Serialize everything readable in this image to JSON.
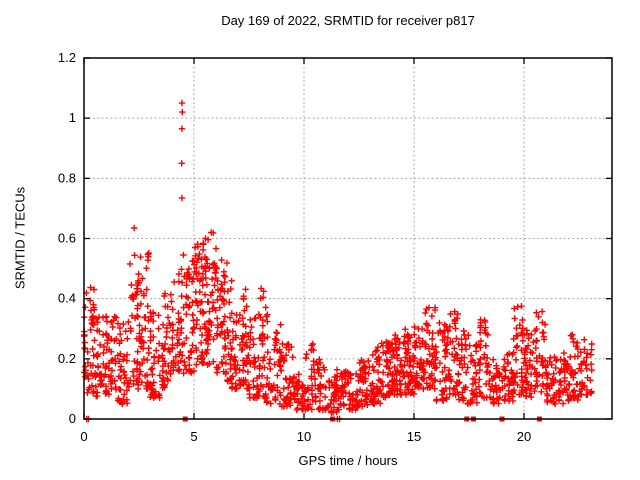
{
  "title": "Day 169 of 2022, SRMTID for receiver p817",
  "chart_data": {
    "type": "scatter",
    "title": "Day 169 of 2022, SRMTID for receiver p817",
    "xlabel": "GPS time / hours",
    "ylabel": "SRMTID / TECUs",
    "xlim": [
      0,
      24
    ],
    "ylim": [
      0,
      1.2
    ],
    "xticks": [
      0,
      5,
      10,
      15,
      20
    ],
    "xtick_labels": [
      "0",
      "5",
      "10",
      "15",
      "20"
    ],
    "yticks": [
      0,
      0.2,
      0.4,
      0.6,
      0.8,
      1,
      1.2
    ],
    "ytick_labels": [
      "0",
      "0.2",
      "0.4",
      "0.6",
      "0.8",
      "1",
      "1.2"
    ],
    "grid": true,
    "grid_color": "#a6a6a6",
    "marker": "plus",
    "marker_color": "#ff0000",
    "border_color": "#000000",
    "legend": "none",
    "series_name": "SRMTID",
    "bands_legend": "[x_start_h, x_end_h, y_min_TECU, y_max_TECU, n_points] density envelope of the scatter cloud",
    "bands": [
      [
        0.0,
        0.5,
        0.08,
        0.46,
        45
      ],
      [
        0.5,
        1.0,
        0.07,
        0.36,
        40
      ],
      [
        1.0,
        1.5,
        0.08,
        0.34,
        40
      ],
      [
        1.5,
        2.0,
        0.05,
        0.33,
        40
      ],
      [
        2.0,
        2.5,
        0.1,
        0.6,
        45
      ],
      [
        2.5,
        3.0,
        0.1,
        0.56,
        45
      ],
      [
        3.0,
        3.5,
        0.07,
        0.36,
        40
      ],
      [
        3.5,
        4.0,
        0.1,
        0.42,
        40
      ],
      [
        4.0,
        4.5,
        0.13,
        0.5,
        40
      ],
      [
        4.5,
        5.0,
        0.15,
        0.53,
        45
      ],
      [
        5.0,
        5.5,
        0.18,
        0.6,
        55
      ],
      [
        5.5,
        6.0,
        0.18,
        0.62,
        55
      ],
      [
        6.0,
        6.5,
        0.15,
        0.55,
        50
      ],
      [
        6.5,
        7.0,
        0.1,
        0.46,
        45
      ],
      [
        7.0,
        7.5,
        0.1,
        0.45,
        45
      ],
      [
        7.5,
        8.0,
        0.07,
        0.36,
        40
      ],
      [
        8.0,
        8.5,
        0.05,
        0.45,
        40
      ],
      [
        8.5,
        9.0,
        0.05,
        0.32,
        35
      ],
      [
        9.0,
        9.5,
        0.04,
        0.28,
        35
      ],
      [
        9.5,
        10.0,
        0.03,
        0.15,
        35
      ],
      [
        10.0,
        10.5,
        0.03,
        0.25,
        35
      ],
      [
        10.5,
        11.0,
        0.03,
        0.2,
        35
      ],
      [
        11.0,
        11.5,
        0.02,
        0.15,
        35
      ],
      [
        11.5,
        12.0,
        0.03,
        0.18,
        35
      ],
      [
        12.0,
        12.5,
        0.03,
        0.16,
        35
      ],
      [
        12.5,
        13.0,
        0.04,
        0.2,
        40
      ],
      [
        13.0,
        13.5,
        0.05,
        0.24,
        40
      ],
      [
        13.5,
        14.0,
        0.07,
        0.26,
        45
      ],
      [
        14.0,
        14.5,
        0.08,
        0.28,
        50
      ],
      [
        14.5,
        15.0,
        0.08,
        0.3,
        50
      ],
      [
        15.0,
        15.5,
        0.09,
        0.31,
        45
      ],
      [
        15.5,
        16.0,
        0.1,
        0.38,
        45
      ],
      [
        16.0,
        16.5,
        0.06,
        0.32,
        40
      ],
      [
        16.5,
        17.0,
        0.08,
        0.36,
        40
      ],
      [
        17.0,
        17.5,
        0.05,
        0.3,
        35
      ],
      [
        17.5,
        18.0,
        0.05,
        0.26,
        35
      ],
      [
        18.0,
        18.5,
        0.07,
        0.33,
        35
      ],
      [
        18.5,
        19.0,
        0.05,
        0.21,
        30
      ],
      [
        19.0,
        19.5,
        0.06,
        0.22,
        35
      ],
      [
        19.5,
        20.0,
        0.08,
        0.38,
        40
      ],
      [
        20.0,
        20.5,
        0.07,
        0.3,
        35
      ],
      [
        20.5,
        21.0,
        0.09,
        0.36,
        35
      ],
      [
        21.0,
        21.5,
        0.05,
        0.21,
        35
      ],
      [
        21.5,
        22.0,
        0.05,
        0.22,
        35
      ],
      [
        22.0,
        22.5,
        0.06,
        0.28,
        35
      ],
      [
        22.5,
        23.1,
        0.08,
        0.27,
        35
      ]
    ],
    "outlier_points": [
      [
        4.45,
        1.05
      ],
      [
        4.47,
        1.02
      ],
      [
        4.45,
        0.965
      ],
      [
        4.44,
        0.85
      ],
      [
        4.45,
        0.735
      ],
      [
        4.52,
        0.545
      ],
      [
        2.28,
        0.635
      ],
      [
        5.78,
        0.62
      ],
      [
        5.52,
        0.6
      ],
      [
        15.68,
        0.37
      ],
      [
        19.88,
        0.375
      ]
    ],
    "zero_points": [
      [
        0.12,
        0
      ],
      [
        0.2,
        0
      ],
      [
        11.52,
        0
      ],
      [
        11.62,
        0
      ]
    ],
    "event_squares_x": [
      4.6,
      11.3,
      17.4,
      17.7,
      19.0,
      20.7
    ]
  }
}
